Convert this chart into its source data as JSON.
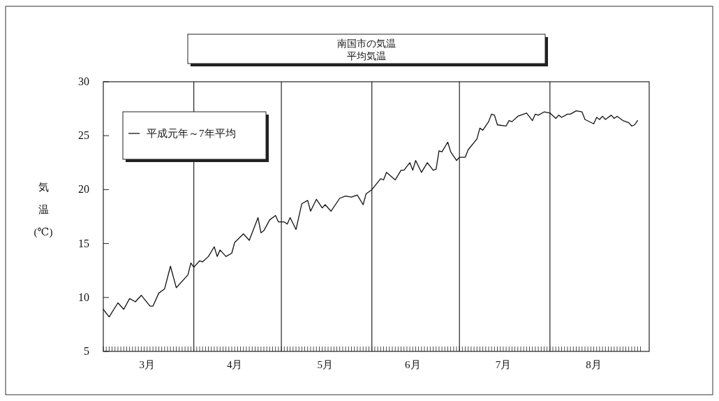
{
  "chart_data": {
    "type": "line",
    "title": "南国市の気温",
    "subtitle": "平均気温",
    "ylabel": "気温(℃)",
    "xlim": [
      "--03-01",
      "--09-04"
    ],
    "ylim": [
      5,
      30
    ],
    "yticks": [
      5,
      10,
      15,
      20,
      25,
      30
    ],
    "xticks": [
      {
        "value": "--03-16",
        "label": "3月"
      },
      {
        "value": "--04-15",
        "label": "4月"
      },
      {
        "value": "--05-16",
        "label": "5月"
      },
      {
        "value": "--06-15",
        "label": "6月"
      },
      {
        "value": "--07-16",
        "label": "7月"
      },
      {
        "value": "--08-16",
        "label": "8月"
      }
    ],
    "ref_lines": [
      {
        "axis": "x",
        "value": "--04-01",
        "label": null
      },
      {
        "axis": "x",
        "value": "--05-01",
        "label": null
      },
      {
        "axis": "x",
        "value": "--06-01",
        "label": null
      },
      {
        "axis": "x",
        "value": "--07-01",
        "label": null
      },
      {
        "axis": "x",
        "value": "--08-01",
        "label": null
      }
    ],
    "legend": "top left",
    "grid": false,
    "series": [
      {
        "name": "平成元年～7年平均",
        "color": "#111111",
        "x": [
          "--03-01",
          "--03-03",
          "--03-06",
          "--03-08",
          "--03-10",
          "--03-12",
          "--03-14",
          "--03-17",
          "--03-18",
          "--03-20",
          "--03-22",
          "--03-24",
          "--03-26",
          "--03-30",
          "--03-31",
          "--04-01",
          "--04-03",
          "--04-04",
          "--04-06",
          "--04-08",
          "--04-09",
          "--04-10",
          "--04-12",
          "--04-14",
          "--04-15",
          "--04-18",
          "--04-20",
          "--04-23",
          "--04-24",
          "--04-25",
          "--04-27",
          "--04-29",
          "--04-30",
          "--05-01",
          "--05-02",
          "--05-03",
          "--05-04",
          "--05-06",
          "--05-08",
          "--05-10",
          "--05-11",
          "--05-13",
          "--05-15",
          "--05-16",
          "--05-18",
          "--05-21",
          "--05-23",
          "--05-25",
          "--05-27",
          "--05-29",
          "--05-30",
          "--06-01",
          "--06-04",
          "--06-05",
          "--06-06",
          "--06-09",
          "--06-11",
          "--06-12",
          "--06-14",
          "--06-15",
          "--06-16",
          "--06-18",
          "--06-20",
          "--06-22",
          "--06-23",
          "--06-24",
          "--06-25",
          "--06-27",
          "--06-28",
          "--06-30",
          "--07-01",
          "--07-03",
          "--07-04",
          "--07-07",
          "--07-08",
          "--07-09",
          "--07-11",
          "--07-12",
          "--07-13",
          "--07-14",
          "--07-17",
          "--07-18",
          "--07-19",
          "--07-21",
          "--07-24",
          "--07-26",
          "--07-27",
          "--07-28",
          "--07-30",
          "--08-01",
          "--08-03",
          "--08-04",
          "--08-05",
          "--08-07",
          "--08-08",
          "--08-10",
          "--08-12",
          "--08-13",
          "--08-16",
          "--08-17",
          "--08-18",
          "--08-19",
          "--08-20",
          "--08-22",
          "--08-23",
          "--08-24",
          "--08-26",
          "--08-28",
          "--08-29",
          "--08-30",
          "--08-31"
        ],
        "values": [
          8.9,
          8.2,
          9.5,
          8.9,
          9.9,
          9.6,
          10.2,
          9.2,
          9.2,
          10.4,
          10.8,
          12.9,
          10.9,
          12.1,
          13.2,
          12.8,
          13.4,
          13.3,
          13.8,
          14.7,
          13.8,
          14.4,
          13.8,
          14.1,
          15.1,
          15.9,
          15.3,
          17.4,
          16.0,
          16.2,
          17.2,
          17.6,
          17.0,
          17.0,
          17.0,
          16.8,
          17.4,
          16.3,
          18.7,
          19.0,
          18.0,
          19.1,
          18.3,
          18.6,
          18.0,
          19.2,
          19.4,
          19.3,
          19.5,
          18.6,
          19.6,
          20.0,
          21.0,
          20.9,
          21.6,
          20.9,
          21.8,
          21.8,
          22.5,
          21.8,
          22.7,
          21.6,
          22.5,
          21.8,
          21.9,
          23.6,
          23.5,
          24.4,
          23.5,
          22.7,
          23.0,
          23.0,
          23.7,
          24.7,
          25.7,
          25.5,
          26.3,
          27.0,
          26.9,
          26.0,
          25.9,
          26.4,
          26.3,
          26.8,
          27.1,
          26.4,
          27.0,
          26.9,
          27.2,
          27.1,
          26.6,
          26.9,
          26.7,
          27.0,
          27.0,
          27.3,
          27.2,
          26.5,
          26.1,
          26.7,
          26.5,
          26.8,
          26.5,
          26.9,
          26.6,
          26.8,
          26.4,
          26.2,
          25.9,
          26.0,
          26.4
        ]
      }
    ]
  }
}
